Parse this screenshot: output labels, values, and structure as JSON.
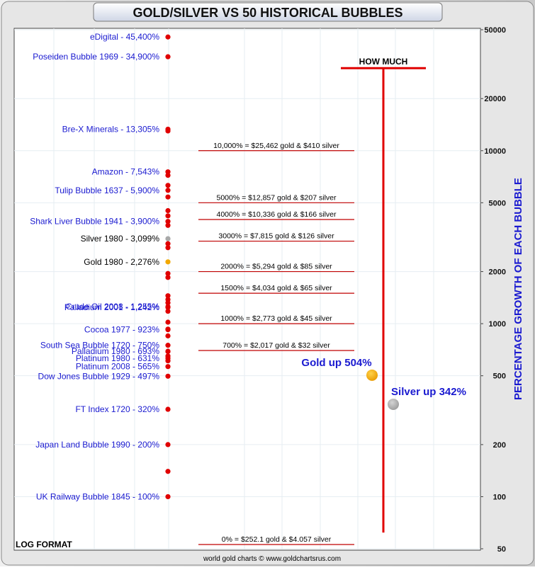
{
  "title": "GOLD/SILVER VS 50 HISTORICAL BUBBLES",
  "footer": "world gold charts © www.goldchartsrus.com",
  "log_format_label": "LOG FORMAT",
  "colors": {
    "bubble_label": "#1a1ad0",
    "highlight_label": "#000000",
    "marker": "#e00000",
    "gold": "#f2a800",
    "silver": "#a8a8a8",
    "threshold_line": "#c00000",
    "how_much_line": "#e00000",
    "axis_title": "#1a1ad0",
    "gold_silver_text": "#1a1ad0"
  },
  "chart_data": {
    "type": "scatter",
    "title": "GOLD/SILVER VS 50 HISTORICAL BUBBLES",
    "ylabel": "PERCENTAGE GROWTH OF EACH BUBBLE",
    "yscale": "log",
    "ylim": [
      50,
      50000
    ],
    "yticks": [
      50,
      100,
      200,
      500,
      1000,
      2000,
      5000,
      10000,
      20000,
      50000
    ],
    "labeled_bubbles": [
      {
        "label": "eDigital - 45,400%",
        "value": 45400,
        "style": "bubble"
      },
      {
        "label": "Poseiden Bubble 1969 - 34,900%",
        "value": 34900,
        "style": "bubble"
      },
      {
        "label": "Bre-X Minerals - 13,305%",
        "value": 13305,
        "style": "bubble"
      },
      {
        "label": "Amazon - 7,543%",
        "value": 7543,
        "style": "bubble"
      },
      {
        "label": "Tulip Bubble 1637 - 5,900%",
        "value": 5900,
        "style": "bubble"
      },
      {
        "label": "Shark Liver Bubble 1941 - 3,900%",
        "value": 3900,
        "style": "bubble"
      },
      {
        "label": "Silver 1980 - 3,099%",
        "value": 3099,
        "style": "highlight"
      },
      {
        "label": "Gold 1980 - 2,276%",
        "value": 2276,
        "style": "highlight"
      },
      {
        "label": "Crude Oil 2008 - 1,255%",
        "value": 1255,
        "style": "bubble"
      },
      {
        "label": "Palladium 2001 - 1,242%",
        "value": 1242,
        "style": "bubble"
      },
      {
        "label": "Cocoa 1977 - 923%",
        "value": 923,
        "style": "bubble"
      },
      {
        "label": "South Sea Bubble 1720 - 750%",
        "value": 750,
        "style": "bubble"
      },
      {
        "label": "Palladium 1980 - 693%",
        "value": 693,
        "style": "bubble"
      },
      {
        "label": "Platinum 1980 - 631%",
        "value": 631,
        "style": "bubble"
      },
      {
        "label": "Platinum 2008 - 565%",
        "value": 565,
        "style": "bubble"
      },
      {
        "label": "Dow Jones Bubble 1929 - 497%",
        "value": 497,
        "style": "bubble"
      },
      {
        "label": "FT Index 1720 - 320%",
        "value": 320,
        "style": "bubble"
      },
      {
        "label": "Japan Land Bubble 1990 - 200%",
        "value": 200,
        "style": "bubble"
      },
      {
        "label": "UK Railway Bubble 1845 - 100%",
        "value": 100,
        "style": "bubble"
      }
    ],
    "unlabeled_markers": [
      13000,
      7200,
      6300,
      5400,
      4500,
      4200,
      3700,
      2900,
      2750,
      1950,
      1850,
      1450,
      1380,
      1320,
      1180,
      1020,
      930,
      850,
      690,
      650,
      610,
      140
    ],
    "marker_colors": {
      "3099": "silver",
      "2276": "gold"
    },
    "thresholds": [
      {
        "value": 10000,
        "label": "10,000% = $25,462 gold & $410 silver"
      },
      {
        "value": 5000,
        "label": "5000% = $12,857 gold & $207 silver"
      },
      {
        "value": 4000,
        "label": "4000% = $10,336 gold & $166 silver"
      },
      {
        "value": 3000,
        "label": "3000% = $7,815 gold & $126 silver"
      },
      {
        "value": 2000,
        "label": "2000% = $5,294 gold & $85 silver"
      },
      {
        "value": 1500,
        "label": "1500% = $4,034 gold & $65 silver"
      },
      {
        "value": 1000,
        "label": "1000% = $2,773 gold & $45 silver"
      },
      {
        "value": 700,
        "label": "700% = $2,017 gold & $32 silver"
      },
      {
        "value": 50,
        "label": "0% = $252.1 gold & $4.057 silver"
      }
    ],
    "current": [
      {
        "label": "Gold up 504%",
        "value": 504,
        "color": "gold"
      },
      {
        "label": "Silver up 342%",
        "value": 342,
        "color": "silver"
      }
    ],
    "how_much": {
      "label": "HOW MUCH",
      "top_value": 30000,
      "bottom_value": 62
    },
    "grid": true
  }
}
